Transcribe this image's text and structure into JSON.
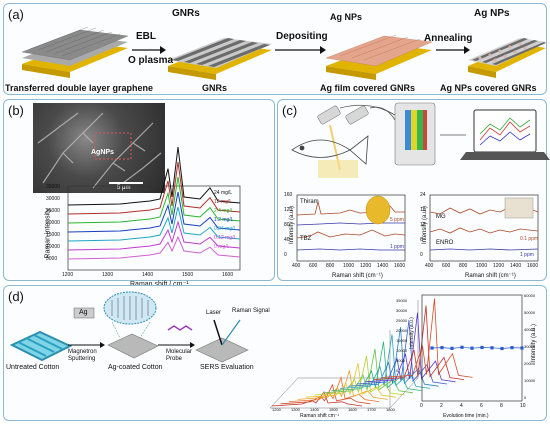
{
  "panel_a": {
    "label": "(a)",
    "ebl": "EBL",
    "oplasma": "O plasma",
    "depositing": "Depositing",
    "annealing": "Annealing",
    "gnrs_top": "GNRs",
    "agnps_top1": "Ag NPs",
    "agnps_top2": "Ag NPs",
    "cap1": "Transferred double layer graphene",
    "cap2": "GNRs",
    "cap3": "Ag film covered GNRs",
    "cap4": "Ag NPs covered GNRs"
  },
  "panel_b": {
    "label": "(b)",
    "sem_label": "AgNPs",
    "scale_bar": "5 μm",
    "ylabel": "Raman intensity",
    "xlabel": "Raman shift / cm⁻¹",
    "yticks": [
      "35000",
      "30000",
      "25000",
      "20000",
      "15000",
      "10000",
      "5000"
    ],
    "xticks": [
      "1200",
      "1300",
      "1400",
      "1500",
      "1600"
    ],
    "series_labels": [
      "24 mg/L",
      "12 mg/L",
      "2.4 mg/L",
      "1.2 mg/L",
      "0.24 mg/L",
      "0.12 mg/L",
      "0 mg/L"
    ],
    "series_colors": [
      "#111111",
      "#b0302a",
      "#2bb52b",
      "#1a3fbf",
      "#1fa7c9",
      "#c23bd0",
      "#d060d0"
    ]
  },
  "panel_c": {
    "label": "(c)",
    "left": {
      "ylabel": "Intensity (a.u.)",
      "xlabel": "Raman shift (cm⁻¹)",
      "yticks": [
        "160",
        "120",
        "80",
        "40",
        "0"
      ],
      "xticks": [
        "400",
        "600",
        "800",
        "1000",
        "1200",
        "1400",
        "1600"
      ],
      "thiram": "Thiram",
      "tbz": "TBZ",
      "ppm5": "5 ppm",
      "ppm1": "1 ppm"
    },
    "right": {
      "ylabel": "Intensity (a.u.)",
      "xlabel": "Raman shift (cm⁻¹)",
      "yticks": [
        "24",
        "18",
        "12",
        "6",
        "0"
      ],
      "xticks": [
        "400",
        "600",
        "800",
        "1000",
        "1200",
        "1400",
        "1600"
      ],
      "mg": "MG",
      "enro": "ENRO",
      "ppm01": "0.1 ppm",
      "ppm1": "1 ppm"
    }
  },
  "panel_d": {
    "label": "(d)",
    "ag": "Ag",
    "untreated": "Untreated Cotton",
    "magnetron": "Magnetron\nSputtering",
    "agcoated": "Ag-coated Cotton",
    "molecular": "Molecular\nProbe",
    "laser": "Laser",
    "raman_signal": "Raman Signal",
    "sers": "SERS Evaluation",
    "xlabel3d": "Raman shift cm⁻¹",
    "xticks3d": [
      "1200",
      "1300",
      "1400",
      "1500",
      "1600",
      "1700",
      "1800"
    ],
    "zticks3d": [
      "35000",
      "30000",
      "25000",
      "20000",
      "15000",
      "10000",
      "5000",
      "0"
    ],
    "zlabel3d": "Intensity (a.u.)",
    "right_ylabel": "Intensity (a.u.)",
    "right_yticks": [
      "60000",
      "50000",
      "40000",
      "30000",
      "20000",
      "10000",
      "0"
    ],
    "right_xticks": [
      "0",
      "2",
      "4",
      "6",
      "8",
      "10"
    ],
    "right_xlabel": "Evolution time (min.)"
  },
  "chart_data": [
    {
      "type": "line",
      "xlabel": "Raman shift / cm⁻¹",
      "ylabel": "Raman intensity",
      "series": [
        {
          "name": "24 mg/L",
          "values": [
            25000,
            33000
          ]
        },
        {
          "name": "12 mg/L",
          "values": [
            22000,
            28000
          ]
        },
        {
          "name": "2.4 mg/L",
          "values": [
            18500,
            23000
          ]
        },
        {
          "name": "1.2 mg/L",
          "values": [
            15000,
            19000
          ]
        },
        {
          "name": "0.24 mg/L",
          "values": [
            12000,
            15500
          ]
        },
        {
          "name": "0.12 mg/L",
          "values": [
            9000,
            11000
          ]
        },
        {
          "name": "0 mg/L",
          "values": [
            6500,
            7500
          ]
        }
      ],
      "x": [
        1200,
        1600
      ],
      "ylim": [
        5000,
        35000
      ]
    },
    {
      "type": "scatter",
      "xlabel": "Evolution time (min.)",
      "ylabel": "Intensity (a.u.)",
      "x": [
        1,
        2,
        3,
        4,
        5,
        6,
        7,
        8,
        9,
        10
      ],
      "values": [
        30000,
        30200,
        29800,
        30400,
        29900,
        30300,
        30100,
        29700,
        30200,
        30000
      ],
      "ylim": [
        0,
        60000
      ]
    }
  ]
}
